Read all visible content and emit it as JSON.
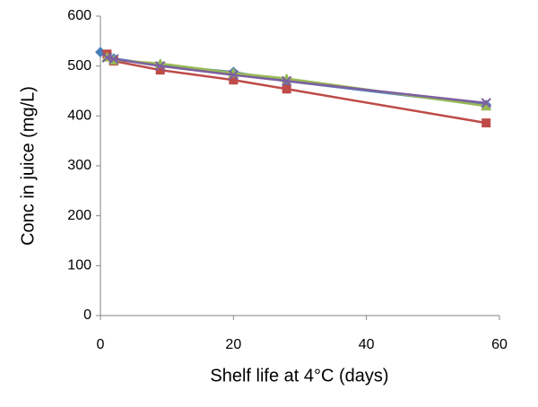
{
  "chart_data": {
    "type": "line",
    "x_label": "Shelf life at 4°C (days)",
    "y_label": "Conc in juice (mg/L)",
    "xlim": [
      0,
      60
    ],
    "xticks": [
      0,
      20,
      40,
      60
    ],
    "ylim": [
      0,
      600
    ],
    "yticks": [
      0,
      100,
      200,
      300,
      400,
      500,
      600
    ],
    "grid": false,
    "series": [
      {
        "color": "#4a7ebb",
        "marker": "diamond",
        "x": [
          0,
          2,
          9,
          20,
          28,
          58
        ],
        "values": [
          528,
          515,
          502,
          488,
          470,
          422
        ]
      },
      {
        "color": "#be4b48",
        "marker": "square",
        "x": [
          1,
          2,
          9,
          20,
          28,
          58
        ],
        "values": [
          524,
          510,
          492,
          472,
          454,
          386
        ]
      },
      {
        "color": "#98b954",
        "marker": "triangle",
        "x": [
          1,
          2,
          9,
          20,
          28,
          58
        ],
        "values": [
          518,
          512,
          505,
          486,
          475,
          420
        ]
      },
      {
        "color": "#7d60a0",
        "marker": "x",
        "x": [
          1,
          2,
          9,
          20,
          28,
          58
        ],
        "values": [
          517,
          514,
          500,
          482,
          470,
          426
        ]
      }
    ]
  }
}
